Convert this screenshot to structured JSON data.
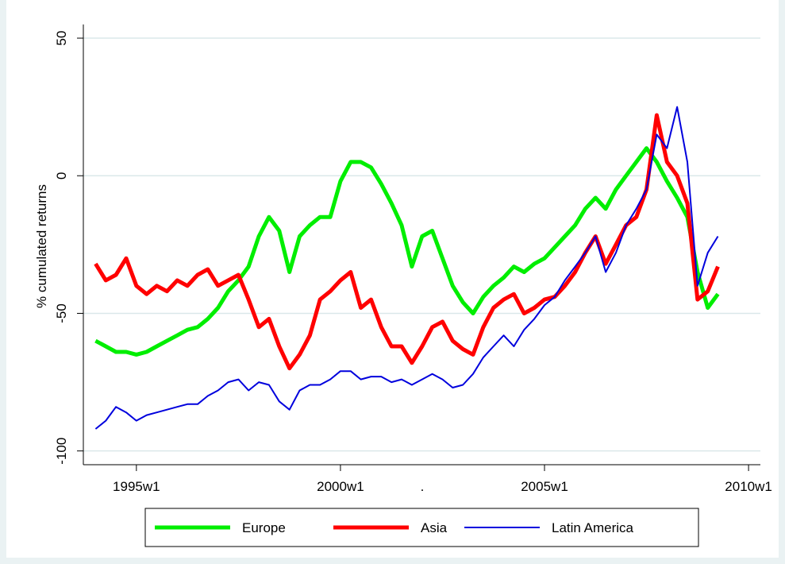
{
  "chart_data": {
    "type": "line",
    "y_label": "% cumulated returns",
    "x_label": ".",
    "x": [
      1994,
      1994.25,
      1994.5,
      1994.75,
      1995,
      1995.25,
      1995.5,
      1995.75,
      1996,
      1996.25,
      1996.5,
      1996.75,
      1997,
      1997.25,
      1997.5,
      1997.75,
      1998,
      1998.25,
      1998.5,
      1998.75,
      1999,
      1999.25,
      1999.5,
      1999.75,
      2000,
      2000.25,
      2000.5,
      2000.75,
      2001,
      2001.25,
      2001.5,
      2001.75,
      2002,
      2002.25,
      2002.5,
      2002.75,
      2003,
      2003.25,
      2003.5,
      2003.75,
      2004,
      2004.25,
      2004.5,
      2004.75,
      2005,
      2005.25,
      2005.5,
      2005.75,
      2006,
      2006.25,
      2006.5,
      2006.75,
      2007,
      2007.25,
      2007.5,
      2007.75,
      2008,
      2008.25,
      2008.5,
      2008.75,
      2009,
      2009.25
    ],
    "series": [
      {
        "name": "Europe",
        "color": "#00ee00",
        "width": 5,
        "values": [
          -60,
          -62,
          -64,
          -64,
          -65,
          -64,
          -62,
          -60,
          -58,
          -56,
          -55,
          -52,
          -48,
          -42,
          -38,
          -33,
          -22,
          -15,
          -20,
          -35,
          -22,
          -18,
          -15,
          -15,
          -2,
          5,
          5,
          3,
          -3,
          -10,
          -18,
          -33,
          -22,
          -20,
          -30,
          -40,
          -46,
          -50,
          -44,
          -40,
          -37,
          -33,
          -35,
          -32,
          -30,
          -26,
          -22,
          -18,
          -12,
          -8,
          -12,
          -5,
          0,
          5,
          10,
          5,
          -2,
          -8,
          -15,
          -35,
          -48,
          -43
        ]
      },
      {
        "name": "Asia",
        "color": "#ff0000",
        "width": 5,
        "values": [
          -32,
          -38,
          -36,
          -30,
          -40,
          -43,
          -40,
          -42,
          -38,
          -40,
          -36,
          -34,
          -40,
          -38,
          -36,
          -45,
          -55,
          -52,
          -62,
          -70,
          -65,
          -58,
          -45,
          -42,
          -38,
          -35,
          -48,
          -45,
          -55,
          -62,
          -62,
          -68,
          -62,
          -55,
          -53,
          -60,
          -63,
          -65,
          -55,
          -48,
          -45,
          -43,
          -50,
          -48,
          -45,
          -44,
          -40,
          -35,
          -28,
          -22,
          -32,
          -25,
          -18,
          -15,
          -5,
          22,
          5,
          0,
          -10,
          -45,
          -42,
          -33
        ]
      },
      {
        "name": "Latin America",
        "color": "#0000dd",
        "width": 2,
        "values": [
          -92,
          -89,
          -84,
          -86,
          -89,
          -87,
          -86,
          -85,
          -84,
          -83,
          -83,
          -80,
          -78,
          -75,
          -74,
          -78,
          -75,
          -76,
          -82,
          -85,
          -78,
          -76,
          -76,
          -74,
          -71,
          -71,
          -74,
          -73,
          -73,
          -75,
          -74,
          -76,
          -74,
          -72,
          -74,
          -77,
          -76,
          -72,
          -66,
          -62,
          -58,
          -62,
          -56,
          -52,
          -47,
          -44,
          -38,
          -33,
          -28,
          -22,
          -35,
          -28,
          -18,
          -12,
          -5,
          15,
          10,
          25,
          5,
          -40,
          -28,
          -22
        ]
      }
    ],
    "xlim": [
      1993.7,
      2010.29
    ],
    "xticks": [
      {
        "value": 1995,
        "label": "1995w1"
      },
      {
        "value": 2000,
        "label": "2000w1"
      },
      {
        "value": 2005,
        "label": "2005w1"
      },
      {
        "value": 2010,
        "label": "2010w1"
      }
    ],
    "ylim": [
      -105,
      55
    ],
    "yticks": [
      50,
      0,
      -50,
      -100
    ],
    "grid": true,
    "legend": "bottom"
  }
}
